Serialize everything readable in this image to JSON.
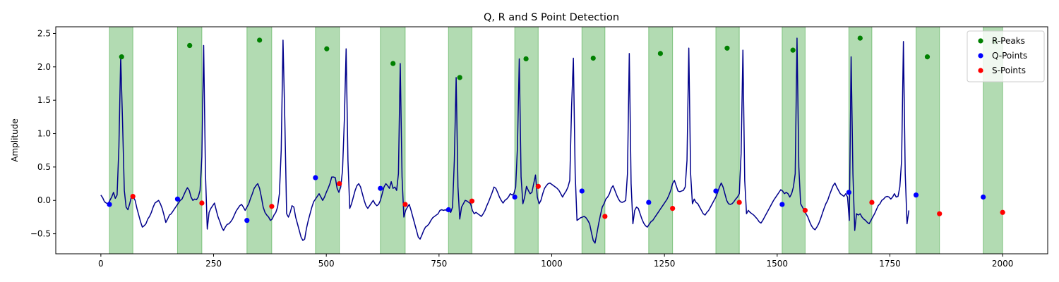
{
  "chart_data": {
    "type": "line",
    "title": "Q, R and S Point Detection",
    "xlabel": "",
    "ylabel": "Amplitude",
    "xlim": [
      -100,
      2100
    ],
    "ylim": [
      -0.8,
      2.6
    ],
    "xticks": [
      0,
      250,
      500,
      750,
      1000,
      1250,
      1500,
      1750,
      2000
    ],
    "yticks": [
      -0.5,
      0.0,
      0.5,
      1.0,
      1.5,
      2.0,
      2.5
    ],
    "ytick_labels": [
      "−0.5",
      "0.0",
      "0.5",
      "1.0",
      "1.5",
      "2.0",
      "2.5"
    ],
    "grid": false,
    "legend_position": "top-right",
    "signal_color": "#00008b",
    "span_color": "#2e9c2e",
    "series": [
      {
        "name": "R-Peaks",
        "color": "#008000",
        "x": [
          46,
          197,
          352,
          501,
          648,
          796,
          943,
          1092,
          1241,
          1389,
          1535,
          1684,
          1833,
          1982
        ],
        "y": [
          2.15,
          2.32,
          2.4,
          2.27,
          2.05,
          1.84,
          2.12,
          2.13,
          2.2,
          2.28,
          2.25,
          2.43,
          2.15,
          2.38
        ]
      },
      {
        "name": "Q-Points",
        "color": "#0000ff",
        "x": [
          19,
          170,
          324,
          476,
          620,
          771,
          918,
          1067,
          1215,
          1364,
          1511,
          1659,
          1808,
          1957
        ],
        "y": [
          -0.06,
          0.02,
          -0.3,
          0.34,
          0.18,
          -0.14,
          0.05,
          0.14,
          -0.03,
          0.14,
          -0.06,
          0.12,
          0.08,
          0.05
        ]
      },
      {
        "name": "S-Points",
        "color": "#ff0000",
        "x": [
          71,
          224,
          379,
          529,
          675,
          823,
          970,
          1118,
          1268,
          1416,
          1562,
          1710,
          1860,
          2000
        ],
        "y": [
          0.06,
          -0.04,
          -0.09,
          0.25,
          -0.06,
          -0.01,
          0.21,
          -0.24,
          -0.12,
          -0.03,
          -0.15,
          -0.03,
          -0.2,
          -0.18
        ]
      }
    ],
    "qrs_intervals": [
      [
        19,
        71
      ],
      [
        170,
        224
      ],
      [
        324,
        379
      ],
      [
        476,
        529
      ],
      [
        620,
        675
      ],
      [
        771,
        823
      ],
      [
        918,
        970
      ],
      [
        1067,
        1118
      ],
      [
        1215,
        1268
      ],
      [
        1364,
        1416
      ],
      [
        1511,
        1562
      ],
      [
        1659,
        1710
      ],
      [
        1808,
        1860
      ],
      [
        1957,
        2000
      ]
    ],
    "signal": {
      "x_start": 0,
      "x_step": 4,
      "y": [
        0.08,
        0.04,
        -0.02,
        -0.04,
        -0.05,
        0.0,
        0.05,
        0.12,
        0.03,
        0.08,
        0.8,
        2.15,
        1.2,
        0.15,
        -0.1,
        -0.14,
        -0.05,
        0.06,
        0.05,
        0.0,
        -0.12,
        -0.22,
        -0.32,
        -0.4,
        -0.38,
        -0.35,
        -0.28,
        -0.24,
        -0.18,
        -0.1,
        -0.04,
        -0.02,
        0.0,
        -0.05,
        -0.12,
        -0.22,
        -0.33,
        -0.28,
        -0.22,
        -0.2,
        -0.16,
        -0.12,
        -0.08,
        -0.04,
        0.0,
        0.02,
        0.08,
        0.14,
        0.19,
        0.15,
        0.05,
        0.0,
        0.02,
        0.01,
        0.05,
        0.15,
        0.65,
        2.32,
        0.4,
        -0.43,
        -0.18,
        -0.12,
        -0.08,
        -0.04,
        -0.15,
        -0.25,
        -0.32,
        -0.4,
        -0.45,
        -0.4,
        -0.36,
        -0.35,
        -0.32,
        -0.28,
        -0.22,
        -0.16,
        -0.12,
        -0.08,
        -0.06,
        -0.1,
        -0.15,
        -0.1,
        -0.05,
        0.03,
        0.1,
        0.18,
        0.22,
        0.25,
        0.18,
        0.05,
        -0.1,
        -0.18,
        -0.22,
        -0.25,
        -0.3,
        -0.28,
        -0.22,
        -0.18,
        -0.1,
        0.1,
        0.75,
        2.4,
        1.2,
        -0.2,
        -0.25,
        -0.18,
        -0.08,
        -0.1,
        -0.25,
        -0.35,
        -0.45,
        -0.55,
        -0.6,
        -0.58,
        -0.42,
        -0.3,
        -0.2,
        -0.1,
        -0.02,
        0.02,
        0.06,
        0.1,
        0.05,
        0.0,
        0.05,
        0.12,
        0.18,
        0.25,
        0.35,
        0.35,
        0.34,
        0.18,
        0.12,
        0.2,
        0.45,
        1.2,
        2.27,
        0.6,
        -0.12,
        -0.05,
        0.05,
        0.15,
        0.22,
        0.25,
        0.2,
        0.1,
        0.0,
        -0.08,
        -0.12,
        -0.08,
        -0.04,
        0.0,
        -0.05,
        -0.08,
        -0.06,
        0.0,
        0.1,
        0.2,
        0.25,
        0.22,
        0.18,
        0.28,
        0.18,
        0.2,
        0.15,
        0.4,
        2.05,
        0.35,
        -0.25,
        -0.15,
        -0.1,
        -0.06,
        -0.15,
        -0.25,
        -0.35,
        -0.45,
        -0.55,
        -0.58,
        -0.52,
        -0.45,
        -0.4,
        -0.38,
        -0.35,
        -0.3,
        -0.26,
        -0.24,
        -0.22,
        -0.2,
        -0.15,
        -0.14,
        -0.15,
        -0.14,
        -0.16,
        -0.15,
        -0.18,
        -0.1,
        0.6,
        1.84,
        0.2,
        -0.28,
        -0.1,
        -0.05,
        0.0,
        -0.01,
        -0.03,
        -0.05,
        -0.15,
        -0.2,
        -0.18,
        -0.2,
        -0.22,
        -0.24,
        -0.2,
        -0.15,
        -0.08,
        -0.02,
        0.05,
        0.12,
        0.2,
        0.18,
        0.12,
        0.05,
        0.0,
        -0.04,
        0.0,
        0.02,
        0.05,
        0.1,
        0.08,
        0.1,
        0.2,
        0.8,
        2.12,
        0.35,
        -0.05,
        0.05,
        0.21,
        0.15,
        0.1,
        0.12,
        0.25,
        0.38,
        0.05,
        -0.05,
        0.0,
        0.1,
        0.18,
        0.22,
        0.25,
        0.26,
        0.24,
        0.22,
        0.2,
        0.18,
        0.15,
        0.1,
        0.05,
        0.1,
        0.14,
        0.2,
        0.3,
        1.4,
        2.13,
        0.4,
        -0.3,
        -0.28,
        -0.26,
        -0.25,
        -0.24,
        -0.26,
        -0.3,
        -0.35,
        -0.48,
        -0.6,
        -0.64,
        -0.5,
        -0.35,
        -0.22,
        -0.1,
        -0.05,
        0.02,
        0.05,
        0.1,
        0.18,
        0.22,
        0.15,
        0.08,
        0.02,
        -0.02,
        -0.03,
        -0.02,
        0.0,
        0.4,
        2.2,
        0.25,
        -0.35,
        -0.15,
        -0.1,
        -0.12,
        -0.2,
        -0.28,
        -0.34,
        -0.38,
        -0.4,
        -0.36,
        -0.32,
        -0.3,
        -0.26,
        -0.22,
        -0.18,
        -0.14,
        -0.1,
        -0.06,
        -0.02,
        0.02,
        0.08,
        0.15,
        0.25,
        0.3,
        0.22,
        0.14,
        0.13,
        0.14,
        0.15,
        0.2,
        0.6,
        2.28,
        0.4,
        -0.05,
        0.02,
        -0.03,
        -0.05,
        -0.1,
        -0.15,
        -0.2,
        -0.22,
        -0.18,
        -0.15,
        -0.1,
        -0.05,
        0.0,
        0.05,
        0.12,
        0.2,
        0.26,
        0.2,
        0.1,
        0.0,
        -0.05,
        -0.06,
        -0.05,
        -0.02,
        0.02,
        0.05,
        0.1,
        0.7,
        2.25,
        0.3,
        -0.2,
        -0.15,
        -0.18,
        -0.2,
        -0.22,
        -0.25,
        -0.28,
        -0.32,
        -0.34,
        -0.3,
        -0.25,
        -0.2,
        -0.15,
        -0.1,
        -0.05,
        0.0,
        0.04,
        0.08,
        0.12,
        0.16,
        0.14,
        0.1,
        0.12,
        0.1,
        0.05,
        0.1,
        0.2,
        0.4,
        2.43,
        0.5,
        -0.05,
        -0.1,
        -0.15,
        -0.2,
        -0.25,
        -0.32,
        -0.38,
        -0.42,
        -0.44,
        -0.4,
        -0.35,
        -0.28,
        -0.2,
        -0.12,
        -0.05,
        0.0,
        0.08,
        0.15,
        0.22,
        0.26,
        0.2,
        0.15,
        0.1,
        0.08,
        0.06,
        0.1,
        0.05,
        -0.3,
        2.15,
        0.4,
        -0.45,
        -0.2,
        -0.22,
        -0.2,
        -0.25,
        -0.28,
        -0.3,
        -0.33,
        -0.35,
        -0.3,
        -0.25,
        -0.2,
        -0.14,
        -0.08,
        -0.05,
        0.0,
        0.02,
        0.05,
        0.06,
        0.05,
        0.02,
        0.05,
        0.1,
        0.05,
        0.06,
        0.2,
        0.6,
        2.38,
        0.4,
        -0.35,
        -0.15
      ]
    }
  }
}
